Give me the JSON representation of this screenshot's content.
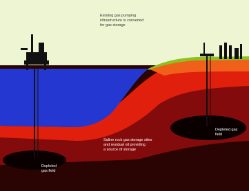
{
  "labels": {
    "top_note": [
      "Existing gas pumping",
      "infrastructure is converted",
      "for gas storage"
    ],
    "middle_note": [
      "Saline rock gas storage sites",
      "and residual oil providing",
      "a source of storage"
    ],
    "left_field": [
      "Depleted",
      "gas field"
    ],
    "right_field": [
      "Depleted gas",
      "field"
    ]
  }
}
